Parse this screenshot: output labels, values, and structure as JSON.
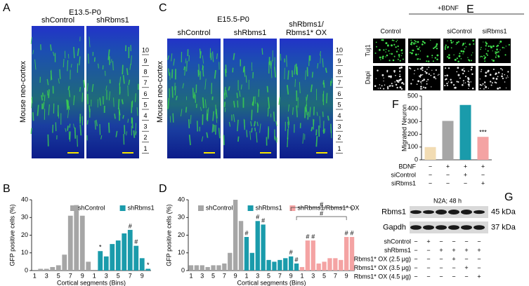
{
  "panel_labels": [
    "A",
    "B",
    "C",
    "D",
    "E",
    "F",
    "G"
  ],
  "panel_a": {
    "title": "E13.5-P0",
    "columns": [
      [
        "shControl"
      ],
      [
        "shRbms1"
      ]
    ],
    "side_label": "Mouse neo-cortex",
    "bins": [
      "10",
      "9",
      "8",
      "7",
      "6",
      "5",
      "4",
      "3",
      "2",
      "1"
    ]
  },
  "panel_c": {
    "title": "E15.5-P0",
    "columns": [
      [
        "shControl"
      ],
      [
        "shRbms1"
      ],
      [
        "shRbms1/",
        "Rbms1* OX"
      ]
    ],
    "side_label": "Mouse neo-cortex",
    "bins": [
      "10",
      "9",
      "8",
      "7",
      "6",
      "5",
      "4",
      "3",
      "2",
      "1"
    ]
  },
  "panel_e": {
    "group_label": "+BDNF",
    "columns": {
      "control": "Control",
      "si_control": "siControl",
      "si_rbms1": "siRbms1"
    },
    "rows": [
      "Tuj1",
      "Dapi"
    ]
  },
  "panel_g": {
    "title": "N2A; 48 h",
    "bands": [
      {
        "name": "Rbms1",
        "size": "45 kDa"
      },
      {
        "name": "Gapdh",
        "size": "37 kDa"
      }
    ],
    "conditions": [
      {
        "name": "shControl",
        "signs": [
          "−",
          "+",
          "−",
          "−",
          "−",
          "−"
        ]
      },
      {
        "name": "shRbms1",
        "signs": [
          "−",
          "−",
          "+",
          "+",
          "+",
          "+"
        ]
      },
      {
        "name": "Rbms1* OX (2.5 μg)",
        "signs": [
          "−",
          "−",
          "−",
          "+",
          "−",
          "−"
        ]
      },
      {
        "name": "Rbms1* OX (3.5 μg)",
        "signs": [
          "−",
          "−",
          "−",
          "−",
          "+",
          "−"
        ]
      },
      {
        "name": "Rbms1* OX (4.5 μg)",
        "signs": [
          "−",
          "−",
          "−",
          "−",
          "−",
          "+"
        ]
      }
    ]
  },
  "chart_data": [
    {
      "type": "grouped",
      "ylabel": "GFP positive cells (%)",
      "xlabel": "Cortical segments (Bins)",
      "categories": [
        "1",
        null,
        "3",
        null,
        "5",
        null,
        "7",
        null,
        "9",
        null
      ],
      "ylim": [
        0,
        40
      ],
      "yticks": [
        0,
        10,
        20,
        30,
        40
      ],
      "series": [
        {
          "name": "shControl",
          "color": "#a6a6a6",
          "values": [
            0,
            1,
            1,
            2,
            3,
            9,
            31,
            37,
            31,
            5
          ],
          "markers": [
            null,
            null,
            null,
            null,
            null,
            null,
            null,
            null,
            null,
            null
          ]
        },
        {
          "name": "shRbms1",
          "color": "#1a9bab",
          "values": [
            0,
            11,
            8,
            15,
            17,
            21,
            23,
            14,
            7,
            1
          ],
          "markers": [
            null,
            "*",
            null,
            null,
            null,
            null,
            "#",
            "#",
            null,
            "*"
          ]
        }
      ]
    },
    {
      "type": "grouped",
      "ylabel": "GFP positive cells (%)",
      "xlabel": "Cortical segments (Bins)",
      "categories": [
        "1",
        null,
        "3",
        null,
        "5",
        null,
        "7",
        null,
        "9",
        null
      ],
      "ylim": [
        0,
        40
      ],
      "yticks": [
        0,
        10,
        20,
        30,
        40
      ],
      "brackets": [
        "#",
        "#"
      ],
      "series": [
        {
          "name": "shControl",
          "color": "#a6a6a6",
          "values": [
            3,
            3,
            3,
            2,
            3,
            3,
            4,
            10,
            40,
            28
          ],
          "markers": [
            null,
            null,
            null,
            null,
            null,
            null,
            null,
            null,
            null,
            null
          ]
        },
        {
          "name": "shRbms1",
          "color": "#1a9bab",
          "values": [
            19,
            10,
            28,
            26,
            6,
            5,
            6,
            7,
            8,
            4
          ],
          "markers": [
            "#",
            null,
            "#",
            "#",
            null,
            null,
            null,
            null,
            "#",
            "#"
          ]
        },
        {
          "name": "shRbms1/Rbms1* OX",
          "color": "#f4a3a3",
          "values": [
            2,
            17,
            17,
            4,
            5,
            7,
            7,
            6,
            19,
            19
          ],
          "markers": [
            null,
            "#",
            "#",
            null,
            null,
            null,
            null,
            null,
            "#",
            "#"
          ]
        }
      ]
    },
    {
      "type": "bar",
      "ylabel": "Migrated Neuron",
      "values": [
        100,
        305,
        430,
        180
      ],
      "colors": [
        "#f2dcb3",
        "#a6a6a6",
        "#1a9bab",
        "#f4a3a3"
      ],
      "markers": [
        null,
        null,
        null,
        "***"
      ],
      "ylim": [
        0,
        500
      ],
      "yticks": [
        0,
        100,
        200,
        300,
        400,
        500
      ],
      "conditions": [
        {
          "name": "BDNF",
          "signs": [
            "−",
            "+",
            "+",
            "+"
          ]
        },
        {
          "name": "siControl",
          "signs": [
            "−",
            "−",
            "+",
            "−"
          ]
        },
        {
          "name": "siRbms1",
          "signs": [
            "−",
            "−",
            "−",
            "+"
          ]
        }
      ]
    }
  ]
}
